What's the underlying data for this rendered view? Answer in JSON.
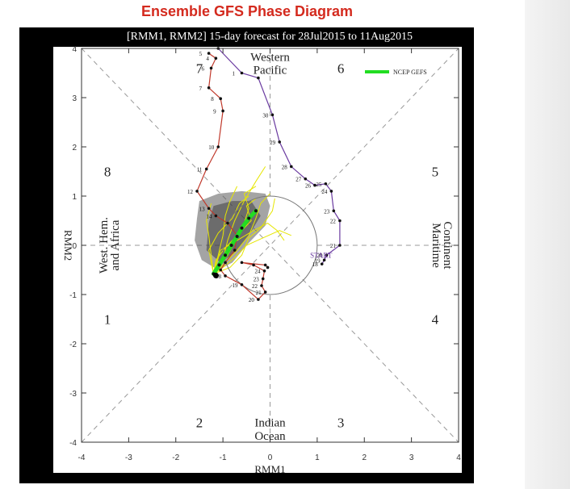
{
  "page_title": "Ensemble GFS Phase Diagram",
  "colors": {
    "title": "#d42a1e",
    "frame": "#000000",
    "track_red": "#c0392b",
    "track_purple": "#6a3aa0",
    "ensemble_mean": "#22dd22",
    "spaghetti": "#e6e600",
    "spread": "#555555"
  },
  "chart_data": {
    "type": "scatter",
    "title": "[RMM1, RMM2] 15-day forecast for 28Jul2015 to 11Aug2015",
    "xlabel": "RMM1",
    "ylabel": "RMM2",
    "xlim": [
      -4,
      4
    ],
    "ylim": [
      -4,
      4
    ],
    "x_ticks": [
      "-4",
      "-3",
      "-2",
      "-1",
      "0",
      "1",
      "2",
      "3",
      "4"
    ],
    "y_ticks": [
      "-4",
      "-3",
      "-2",
      "-1",
      "0",
      "1",
      "2",
      "3",
      "4"
    ],
    "grid": false,
    "legend": {
      "position": "top-right",
      "entries": [
        {
          "name": "NCEP GEFS",
          "color": "#22dd22"
        }
      ]
    },
    "phase_numbers": [
      {
        "label": "1",
        "x": -3.45,
        "y": -1.5
      },
      {
        "label": "2",
        "x": -1.5,
        "y": -3.6
      },
      {
        "label": "3",
        "x": 1.5,
        "y": -3.6
      },
      {
        "label": "4",
        "x": 3.5,
        "y": -1.5
      },
      {
        "label": "5",
        "x": 3.5,
        "y": 1.5
      },
      {
        "label": "6",
        "x": 1.5,
        "y": 3.6
      },
      {
        "label": "7",
        "x": -1.5,
        "y": 3.6
      },
      {
        "label": "8",
        "x": -3.45,
        "y": 1.5
      }
    ],
    "region_labels": {
      "top_line1": "Western",
      "top_line2": "Pacific",
      "bottom_line1": "Indian",
      "bottom_line2": "Ocean",
      "left_line1": "West. Hem.",
      "left_line2": "and Africa",
      "right_line1": "Maritime",
      "right_line2": "Continent"
    },
    "start_label": "START",
    "observed_track": [
      {
        "x": -1.3,
        "y": 3.9,
        "label": "5"
      },
      {
        "x": -1.15,
        "y": 3.8,
        "label": "4"
      },
      {
        "x": -1.25,
        "y": 3.6,
        "label": "6"
      },
      {
        "x": -1.3,
        "y": 3.2,
        "label": "7"
      },
      {
        "x": -1.05,
        "y": 2.98,
        "label": "8"
      },
      {
        "x": -1.0,
        "y": 2.73,
        "label": "9"
      },
      {
        "x": -1.1,
        "y": 2.0,
        "label": "10"
      },
      {
        "x": -1.35,
        "y": 1.55,
        "label": "11"
      },
      {
        "x": -1.55,
        "y": 1.1,
        "label": "12"
      },
      {
        "x": -1.3,
        "y": 0.75,
        "label": "13"
      },
      {
        "x": -1.15,
        "y": 0.6,
        "label": "14"
      },
      {
        "x": -0.9,
        "y": 0.45,
        "label": ""
      },
      {
        "x": -0.7,
        "y": 0.2,
        "label": ""
      },
      {
        "x": -0.75,
        "y": -0.1,
        "label": ""
      },
      {
        "x": -0.95,
        "y": -0.35,
        "label": ""
      },
      {
        "x": -1.05,
        "y": -0.5,
        "label": ""
      },
      {
        "x": -0.95,
        "y": -0.62,
        "label": "18"
      },
      {
        "x": -0.6,
        "y": -0.8,
        "label": "19"
      },
      {
        "x": -0.25,
        "y": -1.1,
        "label": "20"
      },
      {
        "x": -0.1,
        "y": -0.95,
        "label": "21"
      },
      {
        "x": -0.18,
        "y": -0.82,
        "label": "22"
      },
      {
        "x": -0.15,
        "y": -0.68,
        "label": "23"
      },
      {
        "x": -0.12,
        "y": -0.52,
        "label": "24"
      },
      {
        "x": -0.35,
        "y": -0.4,
        "label": ""
      },
      {
        "x": -0.6,
        "y": -0.35,
        "label": ""
      },
      {
        "x": -0.1,
        "y": -0.4,
        "label": ""
      },
      {
        "x": -0.05,
        "y": -0.45,
        "label": ""
      }
    ],
    "observed_track_b": [
      {
        "x": -1.1,
        "y": 4.0,
        "label": ""
      },
      {
        "x": -0.6,
        "y": 3.5,
        "label": "1"
      },
      {
        "x": -0.25,
        "y": 3.4,
        "label": ""
      },
      {
        "x": 0.05,
        "y": 2.65,
        "label": "30"
      },
      {
        "x": 0.2,
        "y": 2.1,
        "label": "29"
      },
      {
        "x": 0.45,
        "y": 1.6,
        "label": "28"
      },
      {
        "x": 0.75,
        "y": 1.35,
        "label": "27"
      },
      {
        "x": 0.95,
        "y": 1.22,
        "label": "26"
      },
      {
        "x": 1.18,
        "y": 1.25,
        "label": "25"
      },
      {
        "x": 1.3,
        "y": 1.1,
        "label": "24"
      },
      {
        "x": 1.35,
        "y": 0.7,
        "label": "23"
      },
      {
        "x": 1.48,
        "y": 0.5,
        "label": "22"
      },
      {
        "x": 1.48,
        "y": 0.0,
        "label": "21"
      },
      {
        "x": 1.2,
        "y": -0.2,
        "label": "20"
      },
      {
        "x": 1.15,
        "y": -0.3,
        "label": "19"
      },
      {
        "x": 1.1,
        "y": -0.38,
        "label": "18"
      }
    ],
    "ensemble_mean": [
      {
        "x": -1.2,
        "y": -0.58
      },
      {
        "x": -1.08,
        "y": -0.4
      },
      {
        "x": -0.95,
        "y": -0.2
      },
      {
        "x": -0.82,
        "y": 0.0
      },
      {
        "x": -0.7,
        "y": 0.18
      },
      {
        "x": -0.6,
        "y": 0.35
      },
      {
        "x": -0.45,
        "y": 0.55
      },
      {
        "x": -0.3,
        "y": 0.7
      }
    ]
  }
}
